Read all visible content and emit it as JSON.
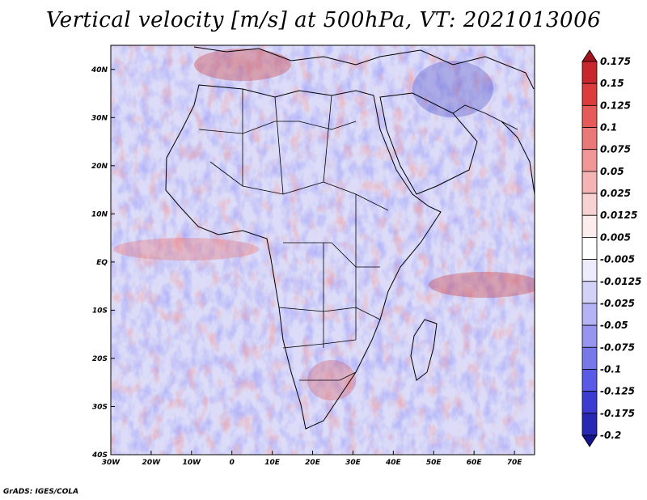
{
  "title": "Vertical velocity [m/s] at 500hPa, VT: 2021013006",
  "credit": "GrADS: IGES/COLA",
  "map": {
    "lon_range": [
      -30,
      75
    ],
    "lat_range": [
      -40,
      45
    ],
    "lon_ticks": [
      {
        "value": -30,
        "label": "30W"
      },
      {
        "value": -20,
        "label": "20W"
      },
      {
        "value": -10,
        "label": "10W"
      },
      {
        "value": 0,
        "label": "0"
      },
      {
        "value": 10,
        "label": "10E"
      },
      {
        "value": 20,
        "label": "20E"
      },
      {
        "value": 30,
        "label": "30E"
      },
      {
        "value": 40,
        "label": "40E"
      },
      {
        "value": 50,
        "label": "50E"
      },
      {
        "value": 60,
        "label": "60E"
      },
      {
        "value": 70,
        "label": "70E"
      }
    ],
    "lat_ticks": [
      {
        "value": 40,
        "label": "40N"
      },
      {
        "value": 30,
        "label": "30N"
      },
      {
        "value": 20,
        "label": "20N"
      },
      {
        "value": 10,
        "label": "10N"
      },
      {
        "value": 0,
        "label": "EQ"
      },
      {
        "value": -10,
        "label": "10S"
      },
      {
        "value": -20,
        "label": "20S"
      },
      {
        "value": -30,
        "label": "30S"
      },
      {
        "value": -40,
        "label": "40S"
      }
    ]
  },
  "colorbar": {
    "labels": [
      "0.175",
      "0.15",
      "0.125",
      "0.1",
      "0.075",
      "0.05",
      "0.025",
      "0.0125",
      "0.005",
      "-0.005",
      "-0.0125",
      "-0.025",
      "-0.05",
      "-0.075",
      "-0.1",
      "-0.125",
      "-0.175",
      "-0.2"
    ],
    "colors": [
      "#a0141e",
      "#c8282d",
      "#dc3c3c",
      "#e65a5a",
      "#eb7878",
      "#f09696",
      "#f5b4b4",
      "#f8d2d2",
      "#fcecec",
      "#ffffff",
      "#ececfc",
      "#d2d2f8",
      "#b4b4f5",
      "#9696f0",
      "#7878eb",
      "#5a5ae6",
      "#3c3cd2",
      "#2828b4",
      "#14148c"
    ]
  }
}
